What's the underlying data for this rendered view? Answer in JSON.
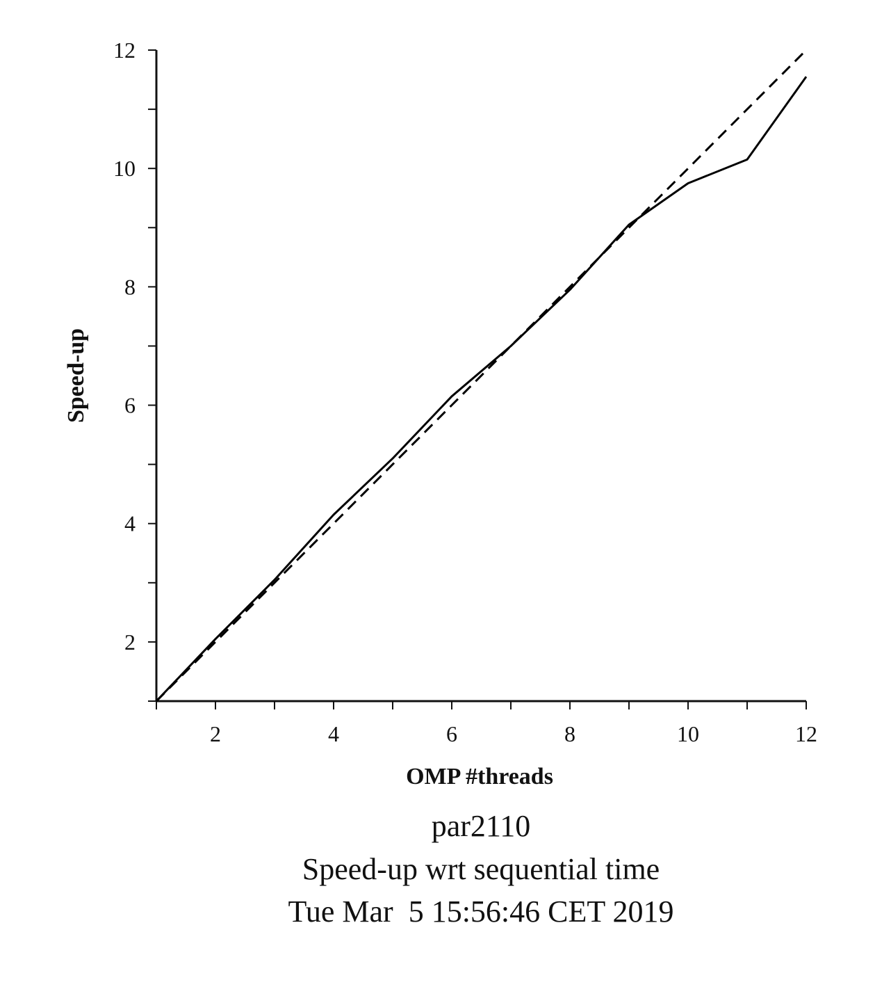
{
  "chart_data": {
    "type": "line",
    "title": "",
    "xlabel": "OMP #threads",
    "ylabel": "Speed-up",
    "xlim": [
      1,
      12
    ],
    "ylim": [
      1,
      12
    ],
    "x_ticks": [
      2,
      4,
      6,
      8,
      10,
      12
    ],
    "y_ticks": [
      2,
      4,
      6,
      8,
      10,
      12
    ],
    "x_minor_ticks": [
      1,
      2,
      3,
      4,
      5,
      6,
      7,
      8,
      9,
      10,
      11,
      12
    ],
    "y_minor_ticks": [
      1,
      2,
      3,
      4,
      5,
      6,
      7,
      8,
      9,
      10,
      11,
      12
    ],
    "grid": false,
    "legend": "none",
    "series": [
      {
        "style": "solid",
        "color": "#000000",
        "x": [
          1,
          2,
          3,
          4,
          5,
          6,
          7,
          8,
          9,
          10,
          11,
          12
        ],
        "y": [
          1.0,
          2.05,
          3.05,
          4.15,
          5.1,
          6.15,
          7.0,
          7.95,
          9.05,
          9.75,
          10.15,
          11.55
        ]
      },
      {
        "style": "dashed",
        "color": "#000000",
        "x": [
          1,
          2,
          3,
          4,
          5,
          6,
          7,
          8,
          9,
          10,
          11,
          12
        ],
        "y": [
          1,
          2,
          3,
          4,
          5,
          6,
          7,
          8,
          9,
          10,
          11,
          12
        ]
      }
    ],
    "caption_lines": [
      "par2110",
      "Speed-up wrt sequential time",
      "Tue Mar  5 15:56:46 CET 2019"
    ]
  }
}
